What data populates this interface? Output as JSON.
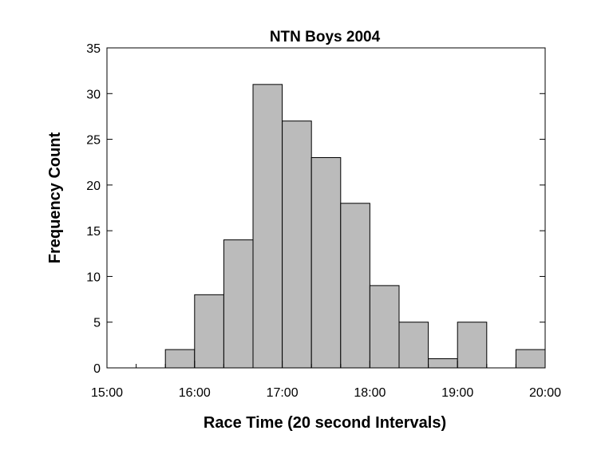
{
  "chart_data": {
    "type": "bar",
    "title": "NTN Boys 2004",
    "xlabel": "Race Time (20 second Intervals)",
    "ylabel": "Frequency Count",
    "ylim": [
      0,
      35
    ],
    "yticks": [
      "0",
      "5",
      "10",
      "15",
      "20",
      "25",
      "30",
      "35"
    ],
    "xticks": [
      "15:00",
      "16:00",
      "17:00",
      "18:00",
      "19:00",
      "20:00"
    ],
    "bin_width_seconds": 20,
    "bins": [
      {
        "start": "15:00",
        "value": 0
      },
      {
        "start": "15:20",
        "value": 0
      },
      {
        "start": "15:40",
        "value": 2
      },
      {
        "start": "16:00",
        "value": 8
      },
      {
        "start": "16:20",
        "value": 14
      },
      {
        "start": "16:40",
        "value": 31
      },
      {
        "start": "17:00",
        "value": 27
      },
      {
        "start": "17:20",
        "value": 23
      },
      {
        "start": "17:40",
        "value": 18
      },
      {
        "start": "18:00",
        "value": 9
      },
      {
        "start": "18:20",
        "value": 5
      },
      {
        "start": "18:40",
        "value": 1
      },
      {
        "start": "19:00",
        "value": 5
      },
      {
        "start": "19:20",
        "value": 0
      },
      {
        "start": "19:40",
        "value": 2
      }
    ],
    "bar_color": "#bbbbbb",
    "grid": false,
    "legend": "none"
  }
}
